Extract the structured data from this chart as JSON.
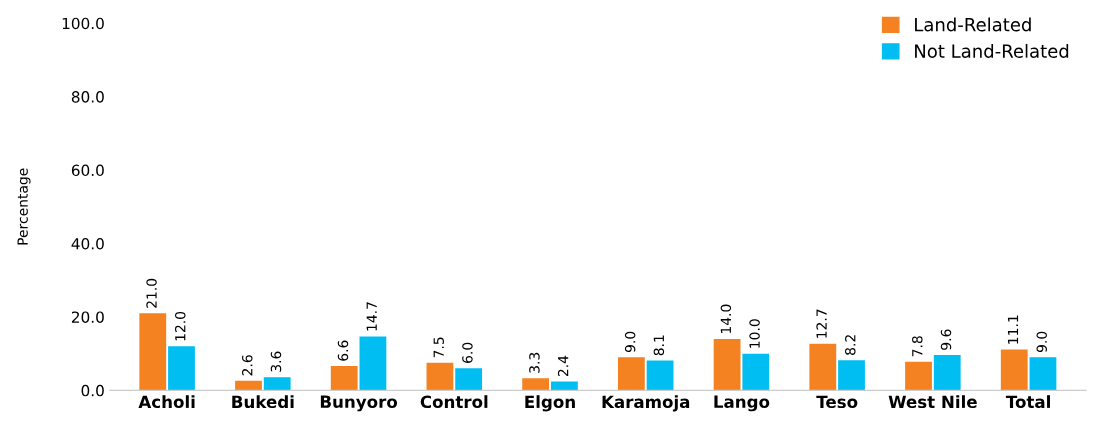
{
  "chart_data": {
    "type": "bar",
    "ylabel": "Percentage",
    "categories": [
      "Acholi",
      "Bukedi",
      "Bunyoro",
      "Control",
      "Elgon",
      "Karamoja",
      "Lango",
      "Teso",
      "West Nile",
      "Total"
    ],
    "series": [
      {
        "name": "Land-Related",
        "color": "#f58220",
        "values": [
          21.0,
          2.6,
          6.6,
          7.5,
          3.3,
          9.0,
          14.0,
          12.7,
          7.8,
          11.1
        ],
        "value_labels": [
          "21.0",
          "2.6",
          "6.6",
          "7.5",
          "3.3",
          "9.0",
          "14.0",
          "12.7",
          "7.8",
          "11.1"
        ]
      },
      {
        "name": "Not Land-Related",
        "color": "#00bdf2",
        "values": [
          12.0,
          3.6,
          14.7,
          6.0,
          2.4,
          8.1,
          10.0,
          8.2,
          9.6,
          9.0
        ],
        "value_labels": [
          "12.0",
          "3.6",
          "14.7",
          "6.0",
          "2.4",
          "8.1",
          "10.0",
          "8.2",
          "9.6",
          "9.0"
        ]
      }
    ],
    "ylim": [
      0,
      100
    ],
    "yticks": [
      {
        "value": 0,
        "label": "0.0"
      },
      {
        "value": 20,
        "label": "20.0"
      },
      {
        "value": 40,
        "label": "40.0"
      },
      {
        "value": 60,
        "label": "60.0"
      },
      {
        "value": 80,
        "label": "80.0"
      },
      {
        "value": 100,
        "label": "100.0"
      }
    ],
    "grid": false,
    "legend": "top right"
  }
}
